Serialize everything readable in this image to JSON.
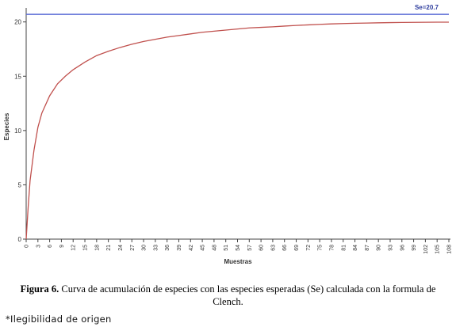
{
  "chart_data": {
    "type": "line",
    "title": "",
    "xlabel": "Muestras",
    "ylabel": "Especies",
    "xlim": [
      0,
      108
    ],
    "ylim": [
      0,
      21
    ],
    "x_ticks": [
      "0",
      "3",
      "6",
      "9",
      "12",
      "15",
      "18",
      "21",
      "24",
      "27",
      "30",
      "33",
      "36",
      "39",
      "42",
      "45",
      "48",
      "51",
      "54",
      "57",
      "60",
      "63",
      "66",
      "69",
      "72",
      "75",
      "78",
      "81",
      "84",
      "87",
      "90",
      "93",
      "96",
      "99",
      "102",
      "105",
      "108"
    ],
    "y_ticks": [
      0,
      5,
      10,
      15,
      20
    ],
    "grid": false,
    "series": [
      {
        "name": "",
        "color": "#c0504d",
        "x": [
          0,
          0.5,
          1,
          2,
          3,
          4,
          6,
          8,
          10,
          12,
          15,
          18,
          21,
          24,
          27,
          30,
          33,
          36,
          39,
          42,
          45,
          48,
          51,
          54,
          57,
          60,
          63,
          66,
          69,
          72,
          75,
          78,
          81,
          84,
          87,
          90,
          93,
          96,
          99,
          102,
          105,
          108
        ],
        "y": [
          0,
          2.9,
          5.4,
          8.2,
          10.3,
          11.6,
          13.2,
          14.3,
          15.0,
          15.6,
          16.3,
          16.9,
          17.3,
          17.65,
          17.95,
          18.2,
          18.4,
          18.6,
          18.75,
          18.9,
          19.05,
          19.15,
          19.25,
          19.35,
          19.45,
          19.5,
          19.55,
          19.62,
          19.68,
          19.73,
          19.78,
          19.82,
          19.85,
          19.88,
          19.9,
          19.92,
          19.94,
          19.95,
          19.96,
          19.97,
          19.98,
          19.98
        ]
      },
      {
        "name": "Se=20.7",
        "color": "#5b6cd6",
        "x": [
          0,
          108
        ],
        "y": [
          20.7,
          20.7
        ]
      }
    ],
    "annotation": "Se=20.7"
  },
  "caption": {
    "label": "Figura 6.",
    "text": " Curva de acumulación de especies con las especies esperadas (Se) calculada con la formula de Clench."
  },
  "note": "*Ilegibilidad de origen"
}
